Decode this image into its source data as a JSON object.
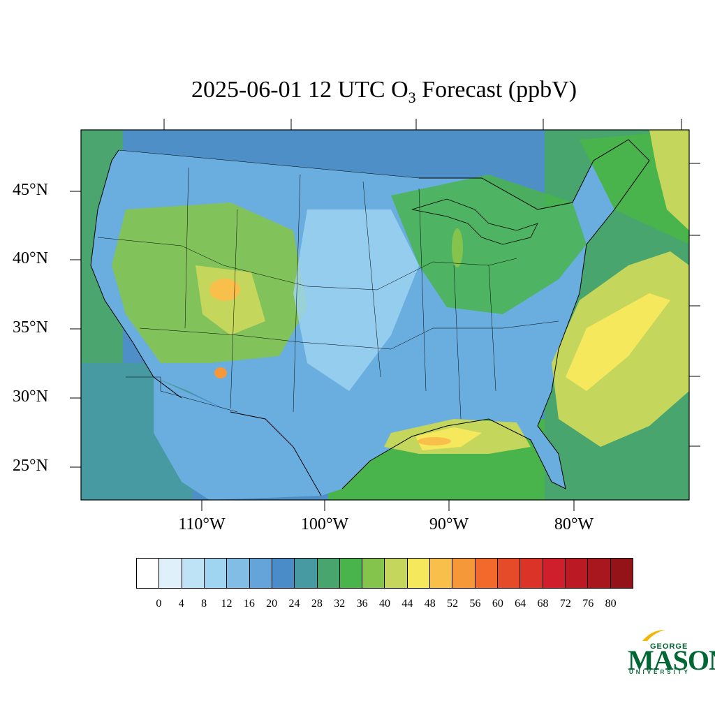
{
  "title": {
    "prefix": "2025-06-01 12 UTC O",
    "subscript": "3",
    "suffix": " Forecast (ppbV)"
  },
  "map": {
    "lat_labels": [
      "45°N",
      "40°N",
      "35°N",
      "30°N",
      "25°N"
    ],
    "lon_labels": [
      "110°W",
      "100°W",
      "90°W",
      "80°W"
    ],
    "lat_values": [
      45,
      40,
      35,
      30,
      25
    ],
    "lon_values": [
      -110,
      -100,
      -90,
      -80
    ],
    "extent": {
      "lon_min": -119.6,
      "lon_max": -70.2,
      "lat_min": 22.5,
      "lat_max": 49.3
    },
    "ocean_color": "#4f8fc8",
    "land_base_color": "#6aaee0",
    "regions": [
      {
        "name": "gulf-of-mexico-high",
        "lon": [
          -95,
          -85
        ],
        "lat": [
          26,
          29.5
        ],
        "level": 48
      },
      {
        "name": "atlantic-plume",
        "lon": [
          -80,
          -72
        ],
        "lat": [
          28,
          40
        ],
        "level": 48
      },
      {
        "name": "northeast-canada",
        "lon": [
          -76,
          -70.5
        ],
        "lat": [
          41,
          48
        ],
        "level": 44
      },
      {
        "name": "rockies",
        "lon": [
          -114,
          -104
        ],
        "lat": [
          33,
          43
        ],
        "level": 40
      },
      {
        "name": "lake-michigan",
        "lon": [
          -88,
          -86.5
        ],
        "lat": [
          41.8,
          45.5
        ],
        "level": 40
      },
      {
        "name": "eastern-us",
        "lon": [
          -92,
          -78
        ],
        "lat": [
          37,
          47
        ],
        "level": 36
      },
      {
        "name": "plains",
        "lon": [
          -104,
          -92
        ],
        "lat": [
          28,
          48
        ],
        "level": 16
      }
    ]
  },
  "colorbar": {
    "colors": [
      "#ffffff",
      "#dff0fa",
      "#bfe3f6",
      "#a0d5f2",
      "#82bde6",
      "#64a4d8",
      "#4a8cc8",
      "#479aa1",
      "#47a56d",
      "#49b44b",
      "#84c44c",
      "#c4d65b",
      "#f6e85c",
      "#f8bf4a",
      "#f5983a",
      "#f16a2c",
      "#e54b29",
      "#dc3328",
      "#cf1f2d",
      "#bb1a25",
      "#a9171e",
      "#931318"
    ],
    "ticks": [
      "0",
      "4",
      "8",
      "12",
      "16",
      "20",
      "24",
      "28",
      "32",
      "36",
      "40",
      "44",
      "48",
      "52",
      "56",
      "60",
      "64",
      "68",
      "72",
      "76",
      "80"
    ]
  },
  "logo": {
    "line1": "GEORGE",
    "line2": "MASON",
    "line3": "UNIVERSITY",
    "color": "#006633"
  }
}
